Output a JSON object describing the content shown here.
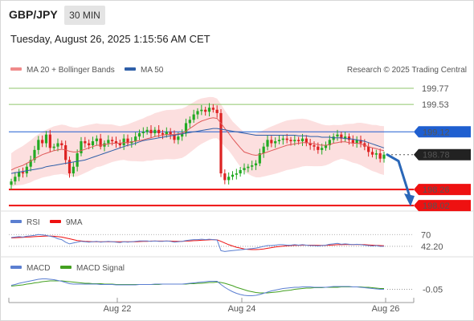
{
  "header": {
    "symbol": "GBP/JPY",
    "timeframe": "30 MIN",
    "datetime": "Tuesday, August 26, 2025 1:15:56 AM CET"
  },
  "legend": {
    "ma20": "MA 20 + Bollinger Bands",
    "ma50": "MA 50",
    "credit": "Research © 2025 Trading Central",
    "rsi": "RSI",
    "rsi_ma": "9MA",
    "macd": "MACD",
    "macd_signal": "MACD Signal"
  },
  "colors": {
    "candle_up": "#22aa22",
    "candle_down": "#dd2222",
    "ma20": "#e05a5a",
    "ma50": "#2f5fa8",
    "bollinger": "#fbd4d4",
    "resistance": "#8fc66c",
    "pivot": "#1f5fd0",
    "support": "#ee1111",
    "arrow": "#2a67b8",
    "rsi": "#5b7fd1",
    "macd": "#5b7fd1",
    "macd_signal": "#43a020"
  },
  "chart_data": [
    {
      "type": "candlestick",
      "ylim": [
        197.95,
        199.95
      ],
      "x_ticks": [
        "Aug 22",
        "Aug 24",
        "Aug 26"
      ],
      "levels": [
        {
          "label": "199.77",
          "value": 199.77,
          "kind": "resistance"
        },
        {
          "label": "199.53",
          "value": 199.53,
          "kind": "resistance"
        },
        {
          "label": "199.12",
          "value": 199.12,
          "kind": "pivot"
        },
        {
          "label": "198.78",
          "value": 198.78,
          "kind": "last"
        },
        {
          "label": "198.26",
          "value": 198.26,
          "kind": "support"
        },
        {
          "label": "198.02",
          "value": 198.02,
          "kind": "support"
        }
      ],
      "close": [
        198.38,
        198.45,
        198.52,
        198.5,
        198.6,
        198.7,
        198.85,
        199.0,
        198.95,
        199.08,
        198.88,
        198.9,
        198.95,
        198.92,
        198.7,
        198.5,
        198.6,
        198.8,
        198.98,
        198.95,
        198.92,
        198.98,
        199.02,
        198.9,
        198.95,
        199.0,
        198.98,
        198.95,
        198.92,
        199.02,
        198.95,
        198.98,
        199.05,
        199.1,
        199.12,
        199.15,
        199.1,
        199.15,
        199.1,
        199.08,
        199.12,
        199.08,
        199.0,
        199.05,
        199.1,
        199.25,
        199.3,
        199.38,
        199.43,
        199.45,
        199.42,
        199.48,
        199.45,
        199.4,
        198.5,
        198.4,
        198.45,
        198.48,
        198.5,
        198.55,
        198.58,
        198.6,
        198.62,
        198.65,
        198.8,
        198.9,
        199.0,
        198.95,
        198.98,
        199.0,
        199.02,
        199.0,
        198.98,
        199.0,
        198.98,
        199.02,
        198.95,
        198.92,
        198.9,
        198.85,
        198.88,
        198.92,
        199.0,
        199.05,
        199.08,
        199.02,
        199.05,
        199.0,
        198.95,
        199.0,
        198.95,
        198.9,
        198.82,
        198.78,
        198.8,
        198.72,
        198.78
      ],
      "ma20": [
        198.55,
        198.58,
        198.6,
        198.62,
        198.65,
        198.68,
        198.72,
        198.75,
        198.78,
        198.8,
        198.82,
        198.84,
        198.85,
        198.86,
        198.85,
        198.83,
        198.82,
        198.82,
        198.84,
        198.86,
        198.88,
        198.9,
        198.92,
        198.92,
        198.93,
        198.94,
        198.95,
        198.95,
        198.95,
        198.96,
        198.96,
        198.97,
        198.98,
        198.99,
        199.0,
        199.02,
        199.03,
        199.05,
        199.06,
        199.07,
        199.08,
        199.08,
        199.08,
        199.09,
        199.1,
        199.13,
        199.17,
        199.21,
        199.25,
        199.28,
        199.3,
        199.32,
        199.33,
        199.32,
        199.25,
        199.17,
        199.1,
        199.02,
        198.95,
        198.88,
        198.82,
        198.8,
        198.78,
        198.77,
        198.78,
        198.8,
        198.82,
        198.84,
        198.86,
        198.88,
        198.9,
        198.92,
        198.93,
        198.94,
        198.95,
        198.96,
        198.96,
        198.95,
        198.94,
        198.93,
        198.92,
        198.92,
        198.93,
        198.95,
        198.96,
        198.97,
        198.97,
        198.96,
        198.95,
        198.95,
        198.94,
        198.92,
        198.9,
        198.88,
        198.87,
        198.85,
        198.84
      ],
      "ma50": [
        198.5,
        198.51,
        198.52,
        198.53,
        198.54,
        198.55,
        198.56,
        198.57,
        198.58,
        198.6,
        198.61,
        198.62,
        198.63,
        198.64,
        198.65,
        198.66,
        198.67,
        198.68,
        198.69,
        198.7,
        198.72,
        198.74,
        198.76,
        198.78,
        198.8,
        198.82,
        198.84,
        198.86,
        198.88,
        198.9,
        198.92,
        198.93,
        198.95,
        198.97,
        198.99,
        199.0,
        199.01,
        199.02,
        199.03,
        199.04,
        199.05,
        199.06,
        199.07,
        199.08,
        199.09,
        199.1,
        199.11,
        199.12,
        199.13,
        199.14,
        199.15,
        199.16,
        199.17,
        199.17,
        199.16,
        199.15,
        199.14,
        199.13,
        199.12,
        199.11,
        199.1,
        199.09,
        199.08,
        199.07,
        199.07,
        199.07,
        199.07,
        199.07,
        199.07,
        199.07,
        199.07,
        199.07,
        199.07,
        199.07,
        199.06,
        199.06,
        199.06,
        199.05,
        199.05,
        199.05,
        199.04,
        199.04,
        199.04,
        199.03,
        199.03,
        199.03,
        199.02,
        199.02,
        199.01,
        199.0,
        198.99,
        198.98,
        198.96,
        198.94,
        198.92,
        198.9,
        198.88
      ]
    },
    {
      "type": "line",
      "name": "RSI",
      "ylim": [
        25,
        80
      ],
      "levels": [
        {
          "label": "70",
          "value": 70
        },
        {
          "label": "42.20",
          "value": 42.2
        }
      ],
      "rsi": [
        63,
        64,
        65,
        64,
        66,
        67,
        68,
        70,
        69,
        68,
        66,
        64,
        60,
        58,
        52,
        48,
        50,
        52,
        54,
        53,
        52,
        53,
        54,
        52,
        53,
        54,
        53,
        52,
        51,
        53,
        52,
        53,
        54,
        55,
        55,
        55,
        54,
        55,
        54,
        54,
        55,
        54,
        52,
        53,
        54,
        56,
        57,
        58,
        58,
        59,
        58,
        59,
        58,
        57,
        32,
        30,
        31,
        32,
        33,
        34,
        35,
        36,
        37,
        38,
        40,
        42,
        44,
        44,
        45,
        46,
        46,
        45,
        45,
        46,
        45,
        46,
        45,
        44,
        44,
        43,
        44,
        45,
        47,
        48,
        49,
        47,
        48,
        47,
        46,
        47,
        46,
        45,
        44,
        43,
        44,
        42,
        42.2
      ],
      "rsi_ma": [
        62,
        62.5,
        63,
        63.5,
        64,
        64.5,
        65,
        65.5,
        66,
        66.5,
        66.5,
        66,
        65,
        64,
        62,
        60,
        58,
        56,
        55,
        54,
        53.5,
        53,
        53,
        53,
        53,
        53,
        53,
        53,
        53,
        53,
        53,
        53,
        53,
        53.5,
        54,
        54,
        54.5,
        54.5,
        54.5,
        54.5,
        54.5,
        54.5,
        54,
        54,
        54,
        54.5,
        55,
        55.5,
        56,
        56.5,
        57,
        57.5,
        58,
        57.5,
        54,
        50,
        46,
        43,
        40,
        38,
        36,
        35,
        34.5,
        34.5,
        35,
        36,
        37.5,
        39,
        40.5,
        41.5,
        42.5,
        43.5,
        44,
        44.5,
        44.5,
        45,
        45,
        45,
        45,
        44.5,
        44.5,
        44.5,
        45,
        45.5,
        46,
        46,
        46.5,
        46.5,
        46.5,
        46.5,
        46.5,
        46,
        45.5,
        45,
        44.5,
        44,
        43.5
      ]
    },
    {
      "type": "line",
      "name": "MACD",
      "ylim": [
        -0.3,
        0.3
      ],
      "levels": [
        {
          "label": "-0.05",
          "value": -0.05
        }
      ],
      "macd": [
        0.05,
        0.07,
        0.1,
        0.12,
        0.14,
        0.16,
        0.18,
        0.2,
        0.21,
        0.21,
        0.2,
        0.19,
        0.17,
        0.15,
        0.12,
        0.09,
        0.08,
        0.08,
        0.08,
        0.08,
        0.08,
        0.08,
        0.08,
        0.07,
        0.07,
        0.07,
        0.07,
        0.06,
        0.06,
        0.06,
        0.06,
        0.06,
        0.06,
        0.07,
        0.07,
        0.07,
        0.07,
        0.08,
        0.08,
        0.08,
        0.08,
        0.08,
        0.08,
        0.08,
        0.08,
        0.09,
        0.1,
        0.11,
        0.12,
        0.13,
        0.14,
        0.15,
        0.15,
        0.15,
        0.07,
        0.0,
        -0.06,
        -0.11,
        -0.15,
        -0.18,
        -0.2,
        -0.21,
        -0.21,
        -0.2,
        -0.18,
        -0.15,
        -0.12,
        -0.09,
        -0.07,
        -0.05,
        -0.03,
        -0.02,
        -0.01,
        0.0,
        0.0,
        0.01,
        0.01,
        0.01,
        0.0,
        0.0,
        0.0,
        0.0,
        0.01,
        0.02,
        0.02,
        0.02,
        0.02,
        0.02,
        0.01,
        0.01,
        0.0,
        -0.01,
        -0.02,
        -0.03,
        -0.04,
        -0.05,
        -0.05
      ],
      "macd_signal": [
        0.03,
        0.04,
        0.05,
        0.06,
        0.08,
        0.09,
        0.11,
        0.12,
        0.14,
        0.15,
        0.16,
        0.16,
        0.16,
        0.16,
        0.15,
        0.14,
        0.13,
        0.12,
        0.11,
        0.1,
        0.1,
        0.09,
        0.09,
        0.09,
        0.08,
        0.08,
        0.08,
        0.07,
        0.07,
        0.07,
        0.07,
        0.07,
        0.07,
        0.07,
        0.07,
        0.07,
        0.07,
        0.07,
        0.07,
        0.08,
        0.08,
        0.08,
        0.08,
        0.08,
        0.08,
        0.08,
        0.09,
        0.09,
        0.1,
        0.1,
        0.11,
        0.12,
        0.12,
        0.13,
        0.12,
        0.1,
        0.07,
        0.04,
        0.0,
        -0.03,
        -0.06,
        -0.09,
        -0.11,
        -0.13,
        -0.14,
        -0.14,
        -0.14,
        -0.13,
        -0.12,
        -0.11,
        -0.09,
        -0.08,
        -0.07,
        -0.05,
        -0.04,
        -0.03,
        -0.02,
        -0.02,
        -0.01,
        -0.01,
        -0.01,
        0.0,
        0.0,
        0.0,
        0.0,
        0.01,
        0.01,
        0.01,
        0.01,
        0.01,
        0.01,
        0.0,
        0.0,
        -0.01,
        -0.02,
        -0.03,
        -0.03
      ]
    }
  ]
}
